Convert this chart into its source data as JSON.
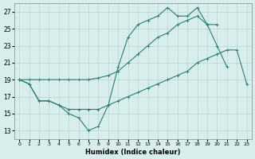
{
  "xlabel": "Humidex (Indice chaleur)",
  "x": [
    0,
    1,
    2,
    3,
    4,
    5,
    6,
    7,
    8,
    9,
    10,
    11,
    12,
    13,
    14,
    15,
    16,
    17,
    18,
    19,
    20,
    21,
    22,
    23
  ],
  "line_jagged": [
    19,
    18.5,
    16.5,
    16.5,
    16.0,
    15.0,
    14.5,
    13.0,
    13.5,
    16.0,
    20.5,
    24.0,
    25.5,
    26.0,
    26.5,
    27.5,
    26.5,
    26.5,
    27.5,
    25.5,
    23.0,
    20.5,
    null,
    null
  ],
  "line_upper": [
    19,
    19,
    19,
    19,
    19,
    19,
    19,
    19,
    19.2,
    19.5,
    20.0,
    21.0,
    22.0,
    23.0,
    24.0,
    24.5,
    25.5,
    26.0,
    26.5,
    25.5,
    25.5,
    null,
    null,
    null
  ],
  "line_lower": [
    19,
    18.5,
    16.5,
    16.5,
    16.0,
    15.5,
    15.5,
    15.5,
    15.5,
    16.0,
    16.5,
    17.0,
    17.5,
    18.0,
    18.5,
    19.0,
    19.5,
    20.0,
    21.0,
    21.5,
    22.0,
    22.5,
    22.5,
    18.5
  ],
  "line_color": "#2d7d6e",
  "bg_color": "#d8eeed",
  "grid_color": "#b0cece",
  "ylim": [
    12,
    28
  ],
  "xlim": [
    -0.5,
    23.5
  ],
  "yticks": [
    13,
    15,
    17,
    19,
    21,
    23,
    25,
    27
  ],
  "xticks": [
    0,
    1,
    2,
    3,
    4,
    5,
    6,
    7,
    8,
    9,
    10,
    11,
    12,
    13,
    14,
    15,
    16,
    17,
    18,
    19,
    20,
    21,
    22,
    23
  ]
}
